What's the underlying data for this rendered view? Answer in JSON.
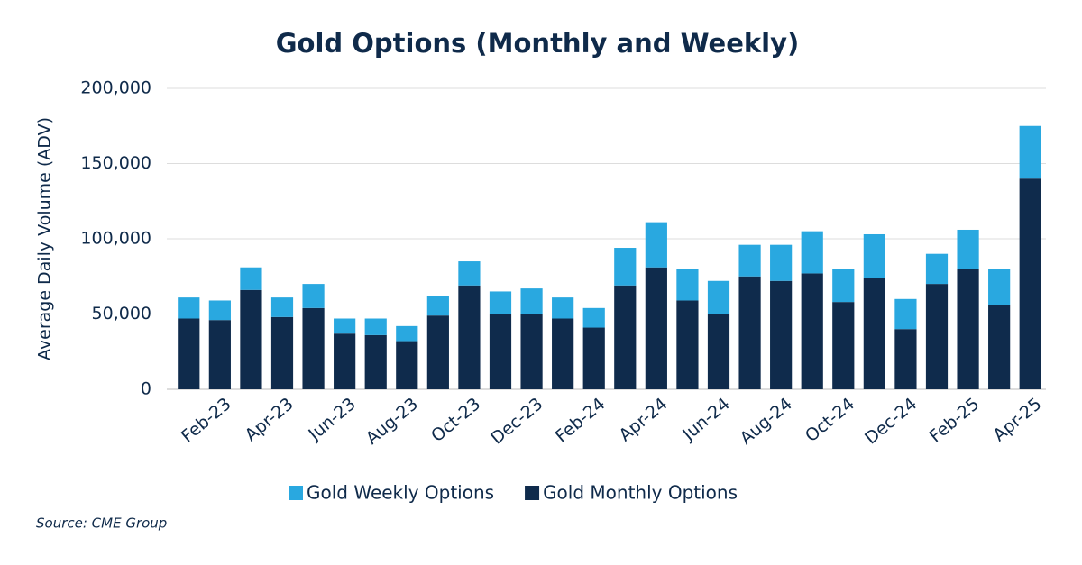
{
  "chart_data": {
    "type": "stacked_bar",
    "title": "Gold Options (Monthly and Weekly)",
    "y_label": "Average Daily Volume (ADV)",
    "source": "Source: CME Group",
    "categories": [
      null,
      "Feb-23",
      null,
      "Apr-23",
      null,
      "Jun-23",
      null,
      "Aug-23",
      null,
      "Oct-23",
      null,
      "Dec-23",
      null,
      "Feb-24",
      null,
      "Apr-24",
      null,
      "Jun-24",
      null,
      "Aug-24",
      null,
      "Oct-24",
      null,
      "Dec-24",
      null,
      "Feb-25",
      null,
      "Apr-25"
    ],
    "series": [
      {
        "name": "Gold Monthly Options",
        "color": "#0f2b4c",
        "values": [
          47000,
          46000,
          66000,
          48000,
          54000,
          37000,
          36000,
          32000,
          49000,
          69000,
          50000,
          50000,
          47000,
          41000,
          69000,
          81000,
          59000,
          50000,
          75000,
          72000,
          77000,
          58000,
          74000,
          40000,
          70000,
          80000,
          56000,
          140000
        ]
      },
      {
        "name": "Gold Weekly Options",
        "color": "#29a8e0",
        "values": [
          14000,
          13000,
          15000,
          13000,
          16000,
          10000,
          11000,
          10000,
          13000,
          16000,
          15000,
          17000,
          14000,
          13000,
          25000,
          30000,
          21000,
          22000,
          21000,
          24000,
          28000,
          22000,
          29000,
          20000,
          20000,
          26000,
          24000,
          35000
        ]
      }
    ],
    "ylim": [
      0,
      200000
    ],
    "yticks": [
      0,
      {
        "value": 50000,
        "label": "50,000"
      },
      {
        "value": 100000,
        "label": "100,000"
      },
      {
        "value": 150000,
        "label": "150,000"
      },
      {
        "value": 200000,
        "label": "200,000"
      }
    ],
    "grid": true
  }
}
